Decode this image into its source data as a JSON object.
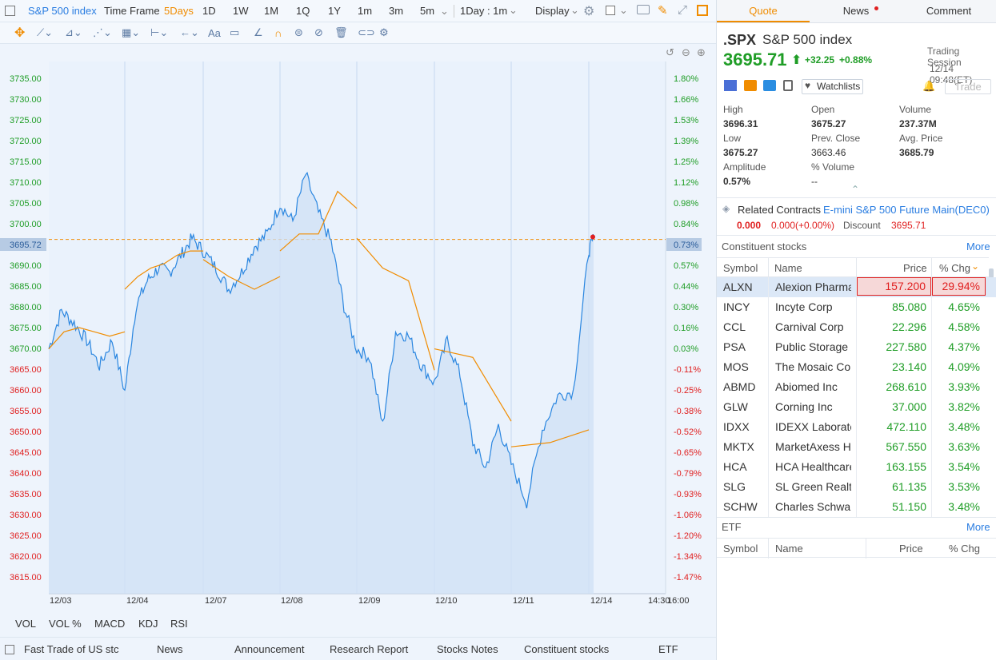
{
  "topbar": {
    "symbol": "S&P 500 index",
    "timeframe_label": "Time Frame",
    "ranges": [
      "5Days",
      "1D",
      "1W",
      "1M",
      "1Q",
      "1Y",
      "1m",
      "3m",
      "5m"
    ],
    "interval": "1Day : 1m",
    "display": "Display"
  },
  "chart": {
    "price_ticks": [
      "3735.00",
      "3730.00",
      "3725.00",
      "3720.00",
      "3715.00",
      "3710.00",
      "3705.00",
      "3700.00",
      "3695.72",
      "3690.00",
      "3685.00",
      "3680.00",
      "3675.00",
      "3670.00",
      "3665.00",
      "3660.00",
      "3655.00",
      "3650.00",
      "3645.00",
      "3640.00",
      "3635.00",
      "3630.00",
      "3625.00",
      "3620.00",
      "3615.00"
    ],
    "pct_ticks": [
      "1.80%",
      "1.66%",
      "1.53%",
      "1.39%",
      "1.25%",
      "1.12%",
      "0.98%",
      "0.84%",
      "0.73%",
      "0.57%",
      "0.44%",
      "0.30%",
      "0.16%",
      "0.03%",
      "-0.11%",
      "-0.25%",
      "-0.38%",
      "-0.52%",
      "-0.65%",
      "-0.79%",
      "-0.93%",
      "-1.06%",
      "-1.20%",
      "-1.34%",
      "-1.47%"
    ],
    "date_ticks": [
      "12/03",
      "12/04",
      "12/07",
      "12/08",
      "12/09",
      "12/10",
      "12/11",
      "12/14",
      "14:30",
      "16:00"
    ]
  },
  "chart_data": {
    "type": "line",
    "ylim": [
      3612.5,
      3737.5
    ],
    "reference_price": 3695.72,
    "days": [
      "12/03",
      "12/04",
      "12/07",
      "12/08",
      "12/09",
      "12/10",
      "12/11",
      "12/14"
    ],
    "series": [
      {
        "values": [
          3670,
          3679,
          3676,
          3672,
          3666,
          3672,
          3660,
          3680,
          3686,
          3689,
          3688,
          3692,
          3696,
          3693,
          3689,
          3684,
          3688,
          3694,
          3697,
          3704,
          3700,
          3711,
          3702,
          3695,
          3680,
          3670,
          3668,
          3652,
          3674,
          3673,
          3666,
          3662,
          3672,
          3664,
          3648,
          3642,
          3652,
          3643,
          3634,
          3651,
          3659,
          3660,
          3693,
          3696
        ]
      },
      {
        "values": [
          3670,
          3674,
          3675,
          3674,
          3673,
          3674,
          3684,
          3687,
          3689,
          3690,
          3692,
          3693,
          3693,
          3691,
          3687,
          3684,
          3687,
          3693,
          3697,
          3697,
          3707,
          3703,
          3696,
          3689,
          3686,
          3665,
          3670,
          3668,
          3653,
          3647,
          3648,
          3651
        ]
      }
    ]
  },
  "indicators": [
    "VOL",
    "VOL %",
    "MACD",
    "KDJ",
    "RSI"
  ],
  "bottom_tabs": [
    "Fast Trade of US stc",
    "News",
    "Announcement",
    "Research Report",
    "Stocks Notes",
    "Constituent stocks",
    "ETF"
  ],
  "right": {
    "tabs": [
      "Quote",
      "News",
      "Comment"
    ],
    "ticker": ".SPX",
    "name": "S&P 500 index",
    "price": "3695.71",
    "change": "+32.25",
    "change_pct": "+0.88%",
    "session": "Trading Session",
    "time": "12/14 09:48(ET)",
    "watchlists": "Watchlists",
    "trade": "Trade",
    "stats": [
      {
        "label": "High",
        "value": "3696.31",
        "color": "green"
      },
      {
        "label": "Open",
        "value": "3675.27",
        "color": "green"
      },
      {
        "label": "Volume",
        "value": "237.37M",
        "color": "black"
      },
      {
        "label": "Low",
        "value": "3675.27",
        "color": "green"
      },
      {
        "label": "Prev. Close",
        "value": "3663.46",
        "color": "black"
      },
      {
        "label": "Avg. Price",
        "value": "3685.79",
        "color": "green"
      },
      {
        "label": "Amplitude",
        "value": "0.57%",
        "color": "black"
      },
      {
        "label": "% Volume",
        "value": "--",
        "color": "black"
      }
    ],
    "related_label": "Related Contracts",
    "related_name": "E-mini S&P 500 Future Main(DEC0)",
    "related_price": "0.000",
    "related_change": "0.000(+0.00%)",
    "discount_label": "Discount",
    "discount_value": "3695.71",
    "constituent_title": "Constituent stocks",
    "more": "More",
    "cols": [
      "Symbol",
      "Name",
      "Price",
      "% Chg"
    ],
    "rows": [
      {
        "sym": "ALXN",
        "name": "Alexion Pharma",
        "price": "157.200",
        "chg": "29.94%"
      },
      {
        "sym": "INCY",
        "name": "Incyte Corp",
        "price": "85.080",
        "chg": "4.65%"
      },
      {
        "sym": "CCL",
        "name": "Carnival Corp",
        "price": "22.296",
        "chg": "4.58%"
      },
      {
        "sym": "PSA",
        "name": "Public Storage",
        "price": "227.580",
        "chg": "4.37%"
      },
      {
        "sym": "MOS",
        "name": "The Mosaic Co",
        "price": "23.140",
        "chg": "4.09%"
      },
      {
        "sym": "ABMD",
        "name": "Abiomed Inc",
        "price": "268.610",
        "chg": "3.93%"
      },
      {
        "sym": "GLW",
        "name": "Corning Inc",
        "price": "37.000",
        "chg": "3.82%"
      },
      {
        "sym": "IDXX",
        "name": "IDEXX Laboratories",
        "price": "472.110",
        "chg": "3.48%"
      },
      {
        "sym": "MKTX",
        "name": "MarketAxess Holdings",
        "price": "567.550",
        "chg": "3.63%"
      },
      {
        "sym": "HCA",
        "name": "HCA Healthcare",
        "price": "163.155",
        "chg": "3.54%"
      },
      {
        "sym": "SLG",
        "name": "SL Green Realty",
        "price": "61.135",
        "chg": "3.53%"
      },
      {
        "sym": "SCHW",
        "name": "Charles Schwab",
        "price": "51.150",
        "chg": "3.48%"
      }
    ],
    "etf_title": "ETF",
    "etf_more": "More",
    "etf_cols": [
      "Symbol",
      "Name",
      "Price",
      "% Chg"
    ]
  }
}
